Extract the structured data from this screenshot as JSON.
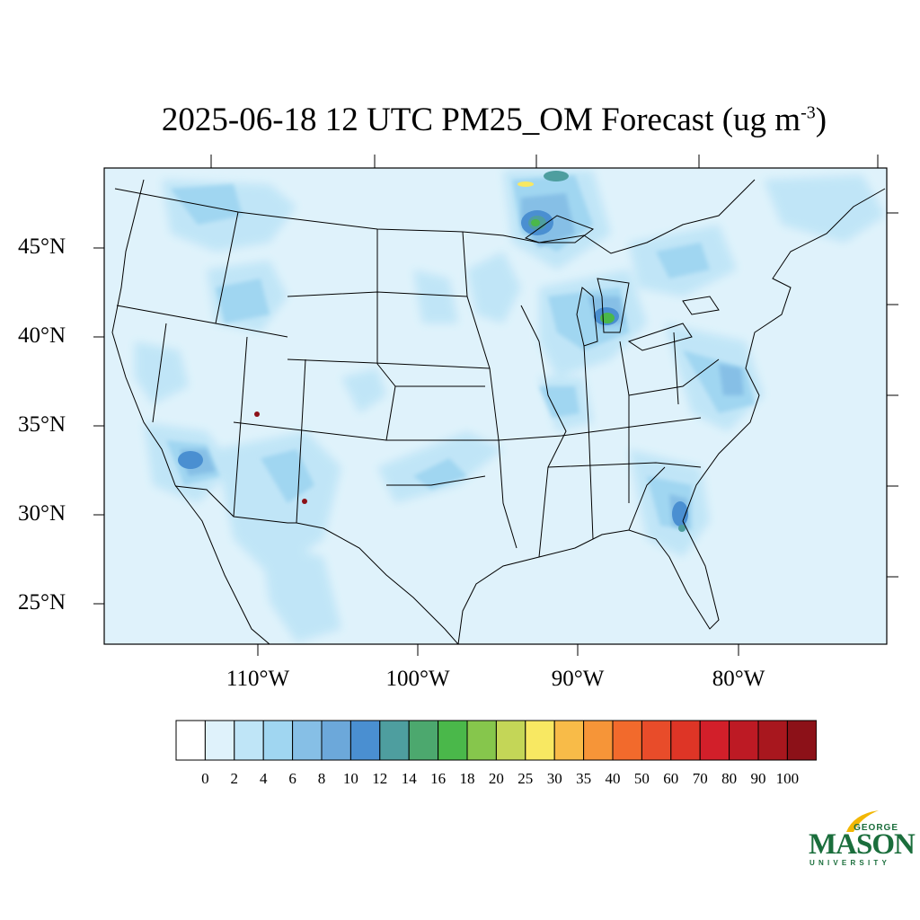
{
  "title": {
    "main": "2025-06-18 12 UTC PM25_OM Forecast (ug m",
    "sup": "-3",
    "close": ")"
  },
  "map": {
    "region": "Continental United States",
    "colors": {
      "background": "#dff2fb",
      "level_2_4": "#bfe5f7",
      "level_4_6": "#a0d6f1",
      "level_6_8": "#86bfe6",
      "level_10_12": "#4a8fd1",
      "level_12_14": "#4e9e9f",
      "level_16_18": "#4ab84a",
      "level_25_30": "#f8e862",
      "level_100": "#8c1118"
    }
  },
  "axes": {
    "lat_labels": [
      "45°N",
      "40°N",
      "35°N",
      "30°N",
      "25°N"
    ],
    "lon_labels": [
      "110°W",
      "100°W",
      "90°W",
      "80°W"
    ]
  },
  "legend": {
    "labels": [
      "0",
      "2",
      "4",
      "6",
      "8",
      "10",
      "12",
      "14",
      "16",
      "18",
      "20",
      "25",
      "30",
      "35",
      "40",
      "50",
      "60",
      "70",
      "80",
      "90",
      "100"
    ],
    "colors": [
      "#ffffff",
      "#dff2fb",
      "#bfe5f7",
      "#a0d6f1",
      "#86bfe6",
      "#6ca8da",
      "#4a8fd1",
      "#4e9e9f",
      "#4ca86e",
      "#4ab84a",
      "#86c64c",
      "#c4d657",
      "#f8e862",
      "#f8bb48",
      "#f69538",
      "#f26a2c",
      "#e84c2a",
      "#de3526",
      "#d21f2a",
      "#bd1a24",
      "#a8171e",
      "#8c1118"
    ]
  },
  "logo": {
    "george": "GEORGE",
    "mason": "MASON",
    "university": "UNIVERSITY"
  }
}
